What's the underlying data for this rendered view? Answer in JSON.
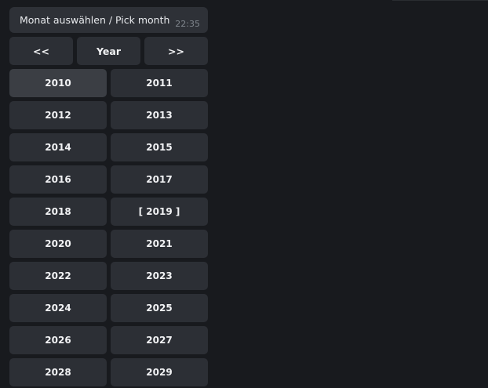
{
  "message": {
    "text": "Monat auswählen / Pick month",
    "time": "22:35"
  },
  "nav": {
    "prev": "<<",
    "title": "Year",
    "next": ">>"
  },
  "years": [
    "2010",
    "2011",
    "2012",
    "2013",
    "2014",
    "2015",
    "2016",
    "2017",
    "2018",
    "[ 2019 ]",
    "2020",
    "2021",
    "2022",
    "2023",
    "2024",
    "2025",
    "2026",
    "2027",
    "2028",
    "2029"
  ],
  "colors": {
    "background": "#181a1e",
    "button": "#2c2f35",
    "button_hover": "#3b3e44"
  }
}
